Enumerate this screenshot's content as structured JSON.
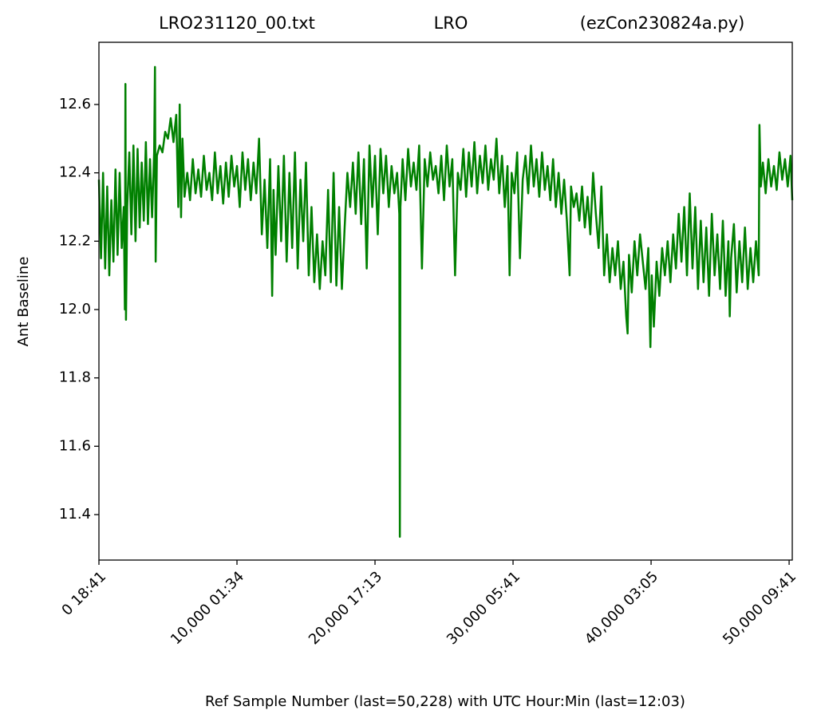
{
  "chart_data": {
    "type": "line",
    "title": [
      "LRO231120_00.txt",
      "LRO",
      "(ezCon230824a.py)"
    ],
    "x_label": "Ref Sample Number (last=50,228) with UTC Hour:Min (last=12:03)",
    "y_label": "Ant Baseline",
    "color": "#008000",
    "xlim": [
      0,
      50228
    ],
    "ylim": [
      11.267,
      12.782
    ],
    "xticks": [
      {
        "value": 0,
        "label": "0  18:41"
      },
      {
        "value": 10000,
        "label": "10,000  01:34"
      },
      {
        "value": 20000,
        "label": "20,000  17:13"
      },
      {
        "value": 30000,
        "label": "30,000  05:41"
      },
      {
        "value": 40000,
        "label": "40,000  03:05"
      },
      {
        "value": 50000,
        "label": "50,000  09:41"
      }
    ],
    "yticks": [
      {
        "value": 11.4,
        "label": "11.4"
      },
      {
        "value": 11.6,
        "label": "11.6"
      },
      {
        "value": 11.8,
        "label": "11.8"
      },
      {
        "value": 12.0,
        "label": "12.0"
      },
      {
        "value": 12.2,
        "label": "12.2"
      },
      {
        "value": 12.4,
        "label": "12.4"
      },
      {
        "value": 12.6,
        "label": "12.6"
      }
    ],
    "x": [
      0,
      150,
      300,
      450,
      600,
      750,
      900,
      1050,
      1200,
      1350,
      1500,
      1650,
      1800,
      1880,
      1920,
      1960,
      2050,
      2200,
      2350,
      2500,
      2650,
      2800,
      2950,
      3100,
      3250,
      3400,
      3550,
      3700,
      3850,
      4000,
      4060,
      4110,
      4200,
      4400,
      4600,
      4800,
      5000,
      5200,
      5400,
      5600,
      5750,
      5850,
      5950,
      6050,
      6200,
      6400,
      6600,
      6800,
      7000,
      7200,
      7400,
      7600,
      7800,
      8000,
      8200,
      8400,
      8600,
      8800,
      9000,
      9200,
      9400,
      9600,
      9800,
      10000,
      10200,
      10400,
      10600,
      10800,
      11000,
      11200,
      11400,
      11600,
      11800,
      12000,
      12200,
      12400,
      12550,
      12650,
      12800,
      13000,
      13200,
      13400,
      13600,
      13800,
      14000,
      14200,
      14400,
      14600,
      14800,
      15000,
      15200,
      15400,
      15600,
      15800,
      16000,
      16200,
      16400,
      16600,
      16800,
      17000,
      17200,
      17400,
      17600,
      17800,
      18000,
      18200,
      18400,
      18600,
      18800,
      19000,
      19200,
      19400,
      19600,
      19800,
      20000,
      20200,
      20400,
      20600,
      20800,
      21000,
      21200,
      21400,
      21600,
      21760,
      21800,
      21840,
      22000,
      22200,
      22400,
      22600,
      22800,
      23000,
      23200,
      23400,
      23600,
      23800,
      24000,
      24200,
      24400,
      24600,
      24800,
      25000,
      25200,
      25400,
      25600,
      25800,
      26000,
      26200,
      26400,
      26600,
      26800,
      27000,
      27200,
      27400,
      27600,
      27800,
      28000,
      28200,
      28400,
      28600,
      28800,
      29000,
      29200,
      29400,
      29600,
      29750,
      29900,
      30100,
      30300,
      30500,
      30700,
      30900,
      31100,
      31300,
      31500,
      31700,
      31900,
      32100,
      32300,
      32500,
      32700,
      32900,
      33100,
      33300,
      33500,
      33700,
      33900,
      34100,
      34200,
      34400,
      34600,
      34800,
      35000,
      35200,
      35400,
      35600,
      35800,
      36000,
      36200,
      36400,
      36600,
      36800,
      37000,
      37200,
      37400,
      37600,
      37800,
      38000,
      38200,
      38300,
      38400,
      38600,
      38800,
      39000,
      39200,
      39400,
      39600,
      39800,
      39950,
      40050,
      40200,
      40400,
      40600,
      40800,
      41000,
      41200,
      41400,
      41600,
      41800,
      42000,
      42200,
      42400,
      42600,
      42800,
      43000,
      43200,
      43400,
      43600,
      43800,
      44000,
      44200,
      44400,
      44600,
      44800,
      45000,
      45200,
      45400,
      45600,
      45700,
      45800,
      46000,
      46200,
      46400,
      46600,
      46800,
      47000,
      47200,
      47400,
      47600,
      47800,
      47850,
      47950,
      48100,
      48300,
      48500,
      48700,
      48900,
      49100,
      49300,
      49500,
      49700,
      49900,
      50100,
      50228
    ],
    "values": [
      12.38,
      12.15,
      12.4,
      12.12,
      12.36,
      12.1,
      12.32,
      12.14,
      12.41,
      12.16,
      12.4,
      12.18,
      12.3,
      12.0,
      12.66,
      11.97,
      12.3,
      12.46,
      12.22,
      12.48,
      12.2,
      12.47,
      12.24,
      12.43,
      12.26,
      12.49,
      12.25,
      12.44,
      12.27,
      12.46,
      12.71,
      12.14,
      12.45,
      12.48,
      12.46,
      12.52,
      12.5,
      12.56,
      12.49,
      12.57,
      12.3,
      12.6,
      12.27,
      12.5,
      12.33,
      12.4,
      12.32,
      12.44,
      12.34,
      12.41,
      12.33,
      12.45,
      12.35,
      12.4,
      12.32,
      12.46,
      12.34,
      12.42,
      12.31,
      12.43,
      12.33,
      12.45,
      12.36,
      12.42,
      12.3,
      12.46,
      12.35,
      12.44,
      12.32,
      12.43,
      12.34,
      12.5,
      12.22,
      12.38,
      12.18,
      12.44,
      12.04,
      12.35,
      12.16,
      12.42,
      12.2,
      12.45,
      12.14,
      12.4,
      12.18,
      12.46,
      12.12,
      12.38,
      12.2,
      12.43,
      12.1,
      12.3,
      12.08,
      12.22,
      12.06,
      12.2,
      12.1,
      12.35,
      12.08,
      12.4,
      12.07,
      12.3,
      12.06,
      12.24,
      12.4,
      12.3,
      12.43,
      12.28,
      12.46,
      12.25,
      12.44,
      12.12,
      12.48,
      12.3,
      12.45,
      12.22,
      12.47,
      12.34,
      12.45,
      12.3,
      12.42,
      12.34,
      12.4,
      12.28,
      11.335,
      12.3,
      12.44,
      12.32,
      12.47,
      12.36,
      12.43,
      12.35,
      12.48,
      12.12,
      12.44,
      12.36,
      12.46,
      12.38,
      12.42,
      12.34,
      12.45,
      12.32,
      12.48,
      12.36,
      12.44,
      12.1,
      12.4,
      12.35,
      12.47,
      12.33,
      12.46,
      12.36,
      12.49,
      12.34,
      12.45,
      12.37,
      12.48,
      12.35,
      12.44,
      12.38,
      12.5,
      12.34,
      12.45,
      12.3,
      12.42,
      12.1,
      12.4,
      12.34,
      12.46,
      12.15,
      12.38,
      12.45,
      12.34,
      12.48,
      12.36,
      12.44,
      12.33,
      12.46,
      12.35,
      12.42,
      12.32,
      12.44,
      12.3,
      12.4,
      12.28,
      12.38,
      12.26,
      12.1,
      12.36,
      12.3,
      12.34,
      12.26,
      12.36,
      12.24,
      12.33,
      12.22,
      12.4,
      12.28,
      12.18,
      12.36,
      12.1,
      12.22,
      12.08,
      12.18,
      12.1,
      12.2,
      12.06,
      12.14,
      11.98,
      11.93,
      12.16,
      12.05,
      12.2,
      12.1,
      12.22,
      12.14,
      12.06,
      12.18,
      11.89,
      12.1,
      11.95,
      12.14,
      12.04,
      12.18,
      12.1,
      12.2,
      12.08,
      12.22,
      12.12,
      12.28,
      12.14,
      12.3,
      12.1,
      12.34,
      12.12,
      12.3,
      12.06,
      12.26,
      12.08,
      12.24,
      12.04,
      12.28,
      12.1,
      12.22,
      12.06,
      12.26,
      12.04,
      12.2,
      11.98,
      12.15,
      12.25,
      12.05,
      12.2,
      12.08,
      12.24,
      12.06,
      12.18,
      12.08,
      12.2,
      12.1,
      12.54,
      12.36,
      12.43,
      12.34,
      12.44,
      12.36,
      12.42,
      12.35,
      12.46,
      12.38,
      12.44,
      12.36,
      12.45,
      12.32
    ]
  }
}
